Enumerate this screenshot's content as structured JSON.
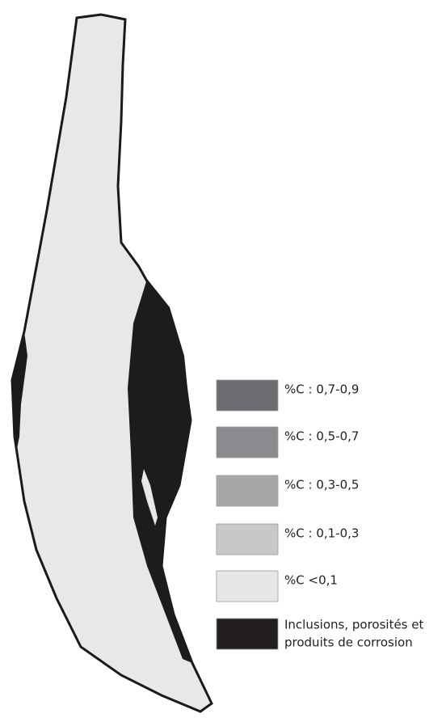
{
  "legend": {
    "items": [
      {
        "label": "%C : 0,7-0,9",
        "color": "#6b6d70"
      },
      {
        "label": "%C : 0,5-0,7",
        "color": "#8a8b8e"
      },
      {
        "label": "%C : 0,3-0,5",
        "color": "#a6a7a9"
      },
      {
        "label": "%C : 0,1-0,3",
        "color": "#c7c8ca"
      },
      {
        "label": "%C <0,1",
        "color": "#e5e6e8"
      },
      {
        "label": [
          "Inclusions, porosités et",
          "produits de corrosion"
        ],
        "color": "#231f20"
      }
    ]
  }
}
